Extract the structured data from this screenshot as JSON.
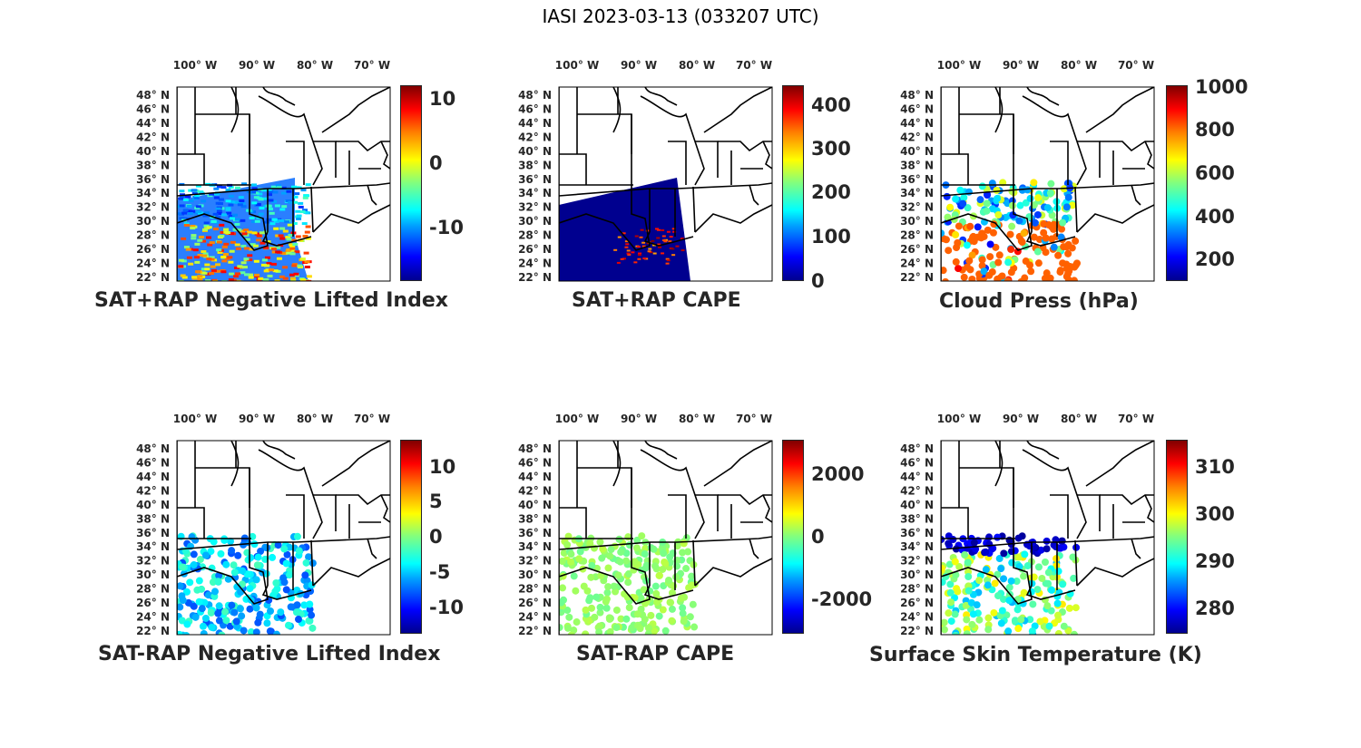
{
  "title": "IASI 2023-03-13 (033207 UTC)",
  "lon_labels": [
    "100° W",
    "90° W",
    "80° W",
    "70° W"
  ],
  "lat_labels": [
    "48° N",
    "46° N",
    "44° N",
    "42° N",
    "40° N",
    "38° N",
    "36° N",
    "34° N",
    "32° N",
    "30° N",
    "28° N",
    "26° N",
    "24° N",
    "22° N"
  ],
  "panels": [
    {
      "title": "SAT+RAP Negative Lifted Index",
      "colorbar_ticks": [
        "10",
        "0",
        "-10"
      ],
      "coverage": "swath-mixed"
    },
    {
      "title": "SAT+RAP CAPE",
      "colorbar_ticks": [
        "400",
        "300",
        "200",
        "100",
        "0"
      ],
      "coverage": "swath-dark"
    },
    {
      "title": "Cloud Press (hPa)",
      "colorbar_ticks": [
        "1000",
        "800",
        "600",
        "400",
        "200"
      ],
      "coverage": "dots-cloud"
    },
    {
      "title": "SAT-RAP Negative Lifted Index",
      "colorbar_ticks": [
        "10",
        "5",
        "0",
        "-5",
        "-10"
      ],
      "coverage": "dots-cyan"
    },
    {
      "title": "SAT-RAP CAPE",
      "colorbar_ticks": [
        "2000",
        "0",
        "-2000"
      ],
      "coverage": "dots-green"
    },
    {
      "title": "Surface Skin Temperature (K)",
      "colorbar_ticks": [
        "310",
        "300",
        "290",
        "280"
      ],
      "coverage": "dots-skin"
    }
  ],
  "colors": {
    "jet_low": "#00008f",
    "jet_high": "#800000",
    "border": "#000000"
  }
}
